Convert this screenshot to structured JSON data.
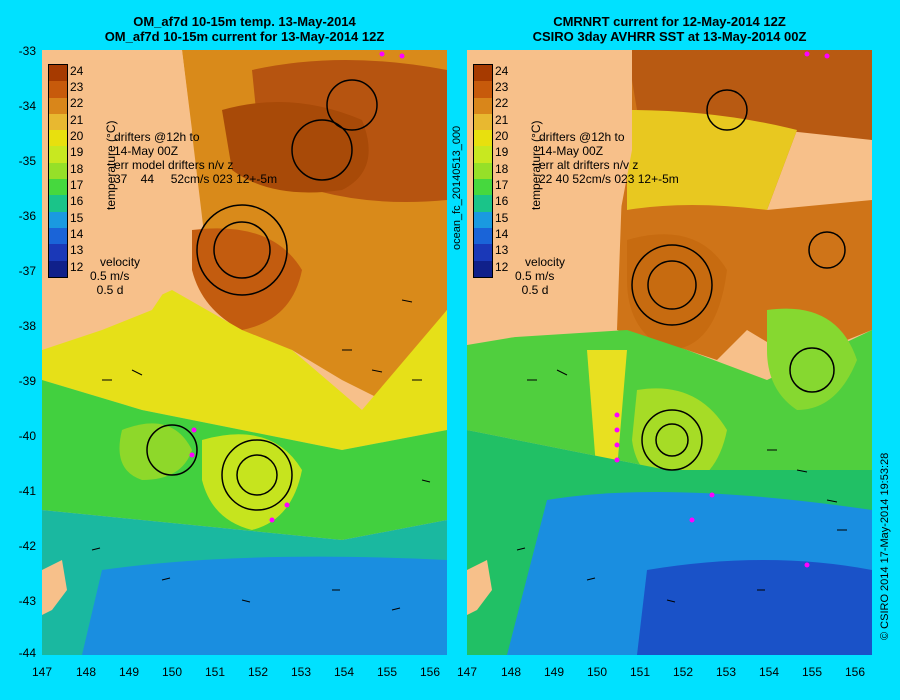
{
  "left": {
    "title_line1": "OM_af7d 10-15m temp. 13-May-2014",
    "title_line2": "OM_af7d 10-15m current for 13-May-2014 12Z",
    "drifters_1": "drifters @12h to",
    "drifters_2": "14-May 00Z",
    "drifters_3": "err model drifters n/v z",
    "drifters_4": "37    44     52cm/s 023 12+-5m"
  },
  "right": {
    "title_line1": "CMRNRT current for 12-May-2014 12Z",
    "title_line2": "CSIRO 3day AVHRR SST at 13-May-2014 00Z",
    "drifters_1": "drifters @12h to",
    "drifters_2": "14-May 00Z",
    "drifters_3": "err alt drifters n/v z",
    "drifters_4": "22 40 52cm/s 023 12+-5m"
  },
  "colorbar": {
    "labels": [
      "24",
      "23",
      "22",
      "21",
      "20",
      "19",
      "18",
      "17",
      "16",
      "15",
      "14",
      "13",
      "12"
    ],
    "colors": [
      "#a63a00",
      "#c75a0b",
      "#d9861a",
      "#e8b830",
      "#e8e00e",
      "#c8e820",
      "#96e028",
      "#46d83e",
      "#1ac489",
      "#1a9ae0",
      "#1a64d8",
      "#1a38b8",
      "#10208a"
    ],
    "unit": "temperature (°C)"
  },
  "velocity": {
    "label": "velocity",
    "speed": "0.5 m/s",
    "time": "0.5 d"
  },
  "y_ticks": [
    "-33",
    "-34",
    "-35",
    "-36",
    "-37",
    "-38",
    "-39",
    "-40",
    "-41",
    "-42",
    "-43",
    "-44"
  ],
  "x_ticks": [
    "147",
    "148",
    "149",
    "150",
    "151",
    "152",
    "153",
    "154",
    "155",
    "156"
  ],
  "middle_label": "ocean_fc_20140513_000",
  "credit": "© CSIRO 2014  17-May-2014 19:53:28"
}
